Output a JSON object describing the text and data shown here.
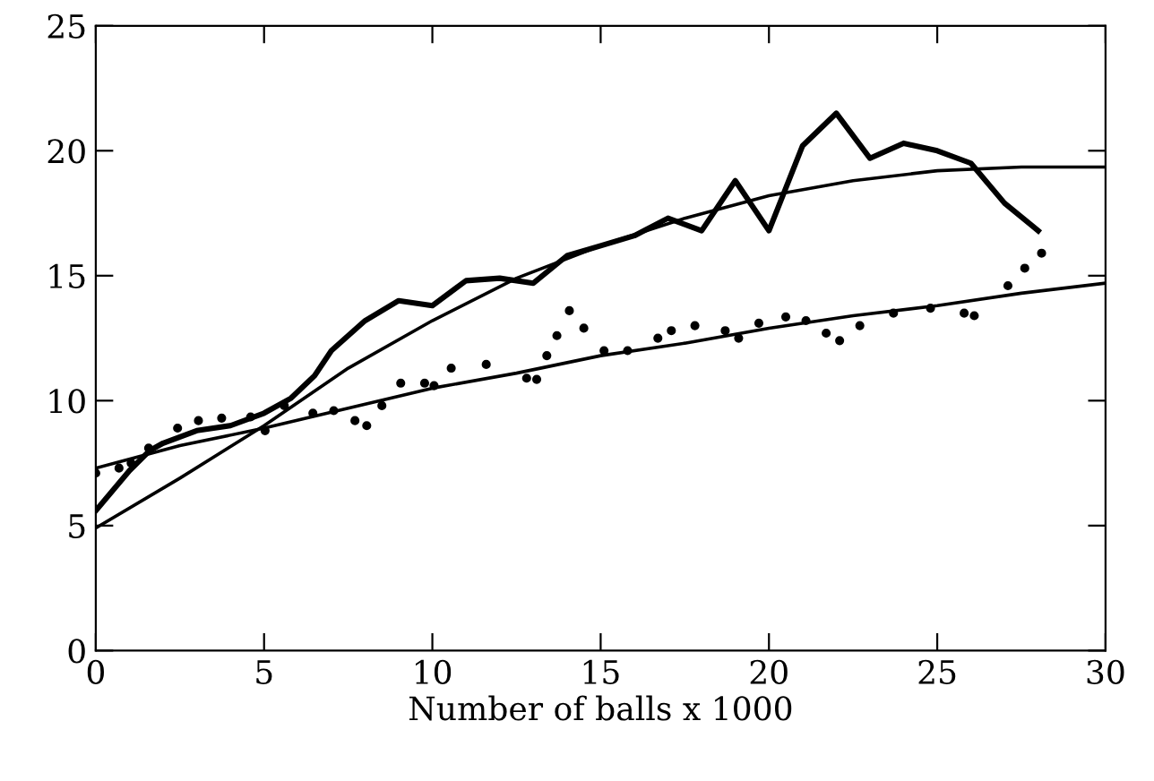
{
  "chart_data": {
    "type": "line",
    "xlabel": "Number of balls x 1000",
    "xlim": [
      0,
      30
    ],
    "xticks": [
      0,
      5,
      10,
      15,
      20,
      25,
      30
    ],
    "ylim": [
      0,
      25
    ],
    "yticks": [
      0,
      5,
      10,
      15,
      20,
      25
    ],
    "grid": false,
    "legend": false,
    "series": [
      {
        "color": "#000000",
        "x": [
          0,
          1,
          1.6,
          2,
          3,
          4,
          5,
          5.8,
          6.5,
          7,
          8,
          9,
          10,
          11,
          12,
          13,
          14,
          15,
          16,
          17,
          18,
          19,
          20,
          21,
          22,
          23,
          24,
          25,
          26,
          27,
          28
        ],
        "values": [
          5.6,
          7.2,
          8.0,
          8.3,
          8.8,
          9.0,
          9.5,
          10.1,
          11.0,
          12.0,
          13.2,
          14.0,
          13.8,
          14.8,
          14.9,
          14.7,
          15.8,
          16.2,
          16.6,
          17.3,
          16.8,
          18.8,
          16.8,
          20.2,
          21.5,
          19.7,
          20.3,
          20.0,
          19.5,
          17.9,
          16.8
        ]
      },
      {
        "color": "#000000",
        "x": [
          0,
          2.5,
          5,
          7.5,
          10,
          12.5,
          15,
          17.5,
          20,
          22.5,
          25,
          27.5,
          30
        ],
        "values": [
          4.9,
          6.9,
          9.0,
          11.3,
          13.2,
          14.9,
          16.2,
          17.3,
          18.2,
          18.8,
          19.2,
          19.35,
          19.35
        ]
      },
      {
        "color": "#000000",
        "x": [
          0,
          2.5,
          5,
          7.5,
          10,
          12.5,
          15,
          17.5,
          20,
          22.5,
          25,
          27.5,
          30
        ],
        "values": [
          7.3,
          8.2,
          8.9,
          9.7,
          10.5,
          11.1,
          11.8,
          12.3,
          12.9,
          13.4,
          13.8,
          14.3,
          14.7
        ]
      },
      {
        "type": "scatter",
        "color": "#000000",
        "marker": "circle",
        "x": [
          0,
          0.69,
          1.05,
          1.57,
          2.43,
          3.05,
          3.74,
          4.6,
          5.03,
          5.6,
          6.45,
          7.07,
          7.7,
          8.05,
          8.5,
          9.06,
          9.77,
          10.05,
          10.56,
          11.6,
          12.8,
          13.1,
          13.4,
          13.7,
          14.07,
          14.5,
          15.1,
          15.8,
          16.7,
          17.1,
          17.8,
          18.7,
          19.1,
          19.7,
          20.5,
          21.1,
          21.7,
          22.1,
          22.7,
          23.7,
          24.8,
          25.8,
          26.1,
          27.1,
          27.6,
          28.1
        ],
        "values": [
          7.1,
          7.3,
          7.5,
          8.1,
          8.9,
          9.2,
          9.3,
          9.35,
          8.8,
          9.8,
          9.5,
          9.6,
          9.2,
          9.0,
          9.8,
          10.7,
          10.7,
          10.6,
          11.3,
          11.45,
          10.9,
          10.85,
          11.8,
          12.6,
          13.6,
          12.9,
          12.0,
          12.0,
          12.5,
          12.8,
          13.0,
          12.8,
          12.5,
          13.1,
          13.35,
          13.2,
          12.7,
          12.4,
          13.0,
          13.5,
          13.7,
          13.5,
          13.4,
          14.6,
          15.3,
          15.9
        ]
      }
    ]
  }
}
